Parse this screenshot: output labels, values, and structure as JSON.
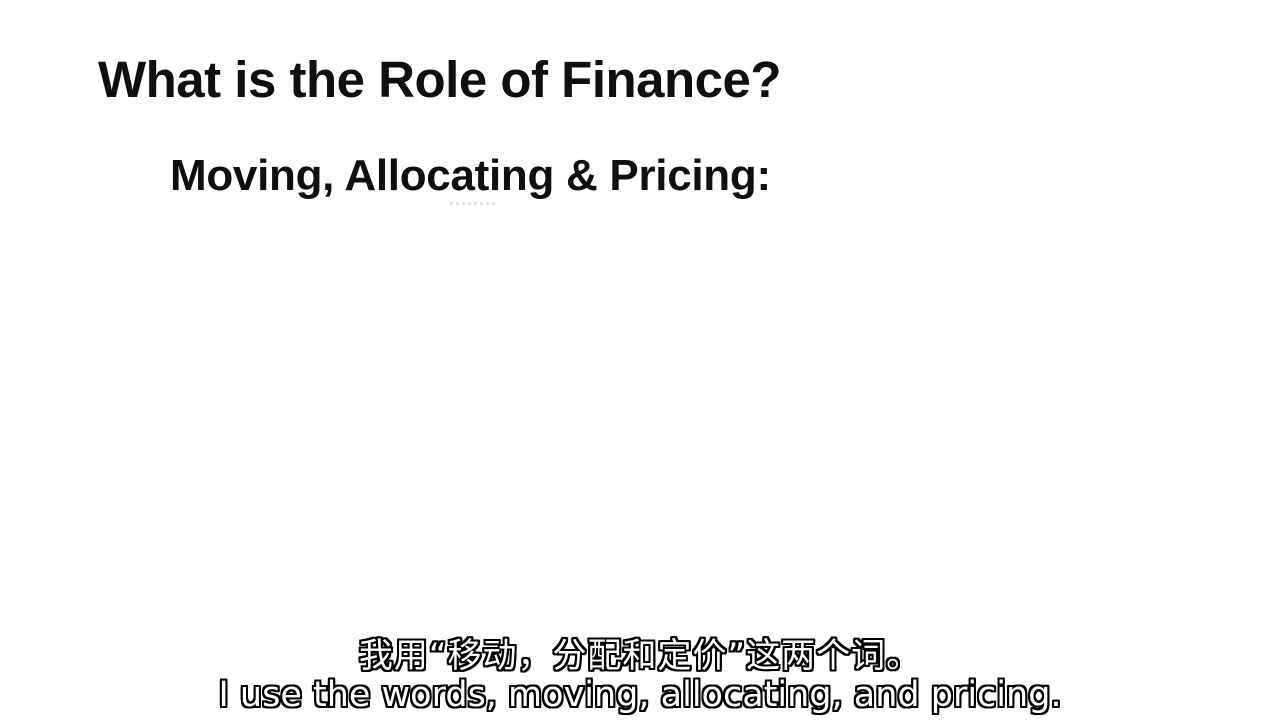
{
  "slide": {
    "title": "What is the Role of Finance?",
    "subtitle": "Moving, Allocating & Pricing:"
  },
  "captions": {
    "chinese": "我用“移动，分配和定价”这两个词。",
    "english": "I use the words, moving, allocating, and pricing."
  }
}
